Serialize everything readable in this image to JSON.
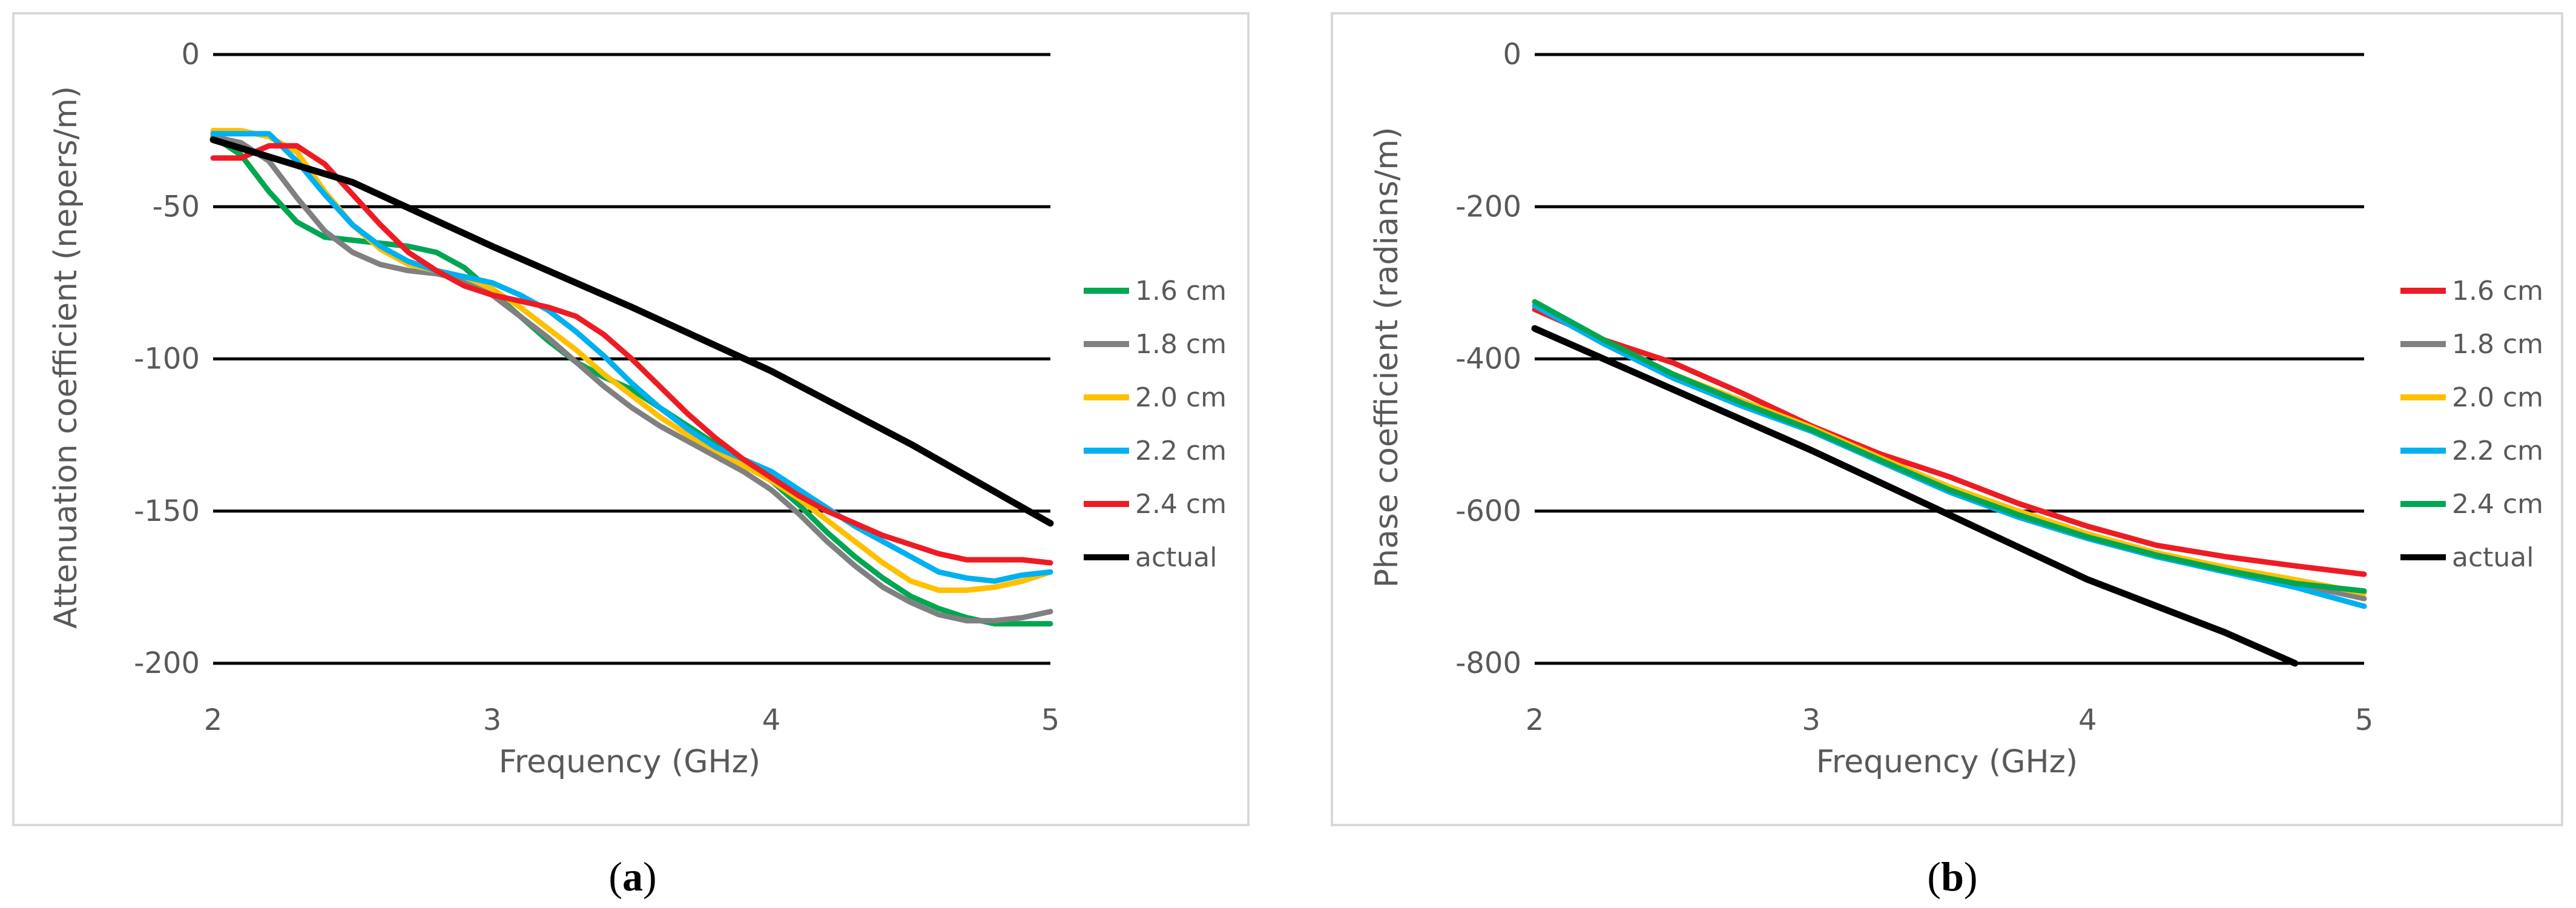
{
  "chart_data": [
    {
      "type": "line",
      "xlabel": "Frequency (GHz)",
      "ylabel": "Attenuation coefficient (nepers/m)",
      "xlim": [
        2,
        5
      ],
      "ylim": [
        -200,
        0
      ],
      "xticks": [
        "2",
        "3",
        "4",
        "5"
      ],
      "yticks": [
        "0",
        "-50",
        "-100",
        "-150",
        "-200"
      ],
      "grid": "horizontal",
      "legend": "right",
      "caption": {
        "label": "a",
        "open": "(",
        "close": ")"
      },
      "series": [
        {
          "name": "1.6 cm",
          "color": "#00a651",
          "x": [
            2.0,
            2.1,
            2.2,
            2.3,
            2.4,
            2.5,
            2.6,
            2.7,
            2.8,
            2.9,
            3.0,
            3.1,
            3.2,
            3.3,
            3.4,
            3.5,
            3.6,
            3.7,
            3.8,
            3.9,
            4.0,
            4.1,
            4.2,
            4.3,
            4.4,
            4.5,
            4.6,
            4.7,
            4.8,
            4.9,
            5.0
          ],
          "y": [
            -27,
            -33,
            -45,
            -55,
            -60,
            -61,
            -62,
            -63,
            -65,
            -70,
            -78,
            -86,
            -94,
            -101,
            -106,
            -110,
            -116,
            -122,
            -128,
            -134,
            -140,
            -148,
            -157,
            -165,
            -172,
            -178,
            -182,
            -185,
            -187,
            -187,
            -187
          ]
        },
        {
          "name": "1.8 cm",
          "color": "#808080",
          "x": [
            2.0,
            2.1,
            2.2,
            2.3,
            2.4,
            2.5,
            2.6,
            2.7,
            2.8,
            2.9,
            3.0,
            3.1,
            3.2,
            3.3,
            3.4,
            3.5,
            3.6,
            3.7,
            3.8,
            3.9,
            4.0,
            4.1,
            4.2,
            4.3,
            4.4,
            4.5,
            4.6,
            4.7,
            4.8,
            4.9,
            5.0
          ],
          "y": [
            -27,
            -29,
            -35,
            -47,
            -58,
            -65,
            -69,
            -71,
            -72,
            -74,
            -79,
            -86,
            -93,
            -101,
            -109,
            -116,
            -122,
            -127,
            -132,
            -137,
            -143,
            -151,
            -160,
            -168,
            -175,
            -180,
            -184,
            -186,
            -186,
            -185,
            -183
          ]
        },
        {
          "name": "2.0 cm",
          "color": "#ffc000",
          "x": [
            2.0,
            2.1,
            2.2,
            2.3,
            2.4,
            2.5,
            2.6,
            2.7,
            2.8,
            2.9,
            3.0,
            3.1,
            3.2,
            3.3,
            3.4,
            3.5,
            3.6,
            3.7,
            3.8,
            3.9,
            4.0,
            4.1,
            4.2,
            4.3,
            4.4,
            4.5,
            4.6,
            4.7,
            4.8,
            4.9,
            5.0
          ],
          "y": [
            -25,
            -25,
            -27,
            -32,
            -45,
            -56,
            -64,
            -69,
            -71,
            -73,
            -77,
            -83,
            -90,
            -97,
            -105,
            -112,
            -119,
            -125,
            -130,
            -135,
            -140,
            -146,
            -153,
            -160,
            -167,
            -173,
            -176,
            -176,
            -175,
            -173,
            -170
          ]
        },
        {
          "name": "2.2 cm",
          "color": "#00b0f0",
          "x": [
            2.0,
            2.1,
            2.2,
            2.3,
            2.4,
            2.5,
            2.6,
            2.7,
            2.8,
            2.9,
            3.0,
            3.1,
            3.2,
            3.3,
            3.4,
            3.5,
            3.6,
            3.7,
            3.8,
            3.9,
            4.0,
            4.1,
            4.2,
            4.3,
            4.4,
            4.5,
            4.6,
            4.7,
            4.8,
            4.9,
            5.0
          ],
          "y": [
            -26,
            -26,
            -26,
            -35,
            -46,
            -56,
            -63,
            -68,
            -71,
            -73,
            -75,
            -79,
            -84,
            -91,
            -99,
            -108,
            -116,
            -123,
            -129,
            -133,
            -137,
            -143,
            -149,
            -155,
            -160,
            -165,
            -170,
            -172,
            -173,
            -171,
            -170
          ]
        },
        {
          "name": "2.4 cm",
          "color": "#ed1c24",
          "x": [
            2.0,
            2.1,
            2.2,
            2.3,
            2.4,
            2.5,
            2.6,
            2.7,
            2.8,
            2.9,
            3.0,
            3.1,
            3.2,
            3.3,
            3.4,
            3.5,
            3.6,
            3.7,
            3.8,
            3.9,
            4.0,
            4.1,
            4.2,
            4.3,
            4.4,
            4.5,
            4.6,
            4.7,
            4.8,
            4.9,
            5.0
          ],
          "y": [
            -34,
            -34,
            -30,
            -30,
            -36,
            -46,
            -56,
            -65,
            -71,
            -76,
            -79,
            -81,
            -83,
            -86,
            -92,
            -100,
            -109,
            -118,
            -126,
            -133,
            -139,
            -145,
            -150,
            -154,
            -158,
            -161,
            -164,
            -166,
            -166,
            -166,
            -167
          ]
        },
        {
          "name": "actual",
          "color": "#000000",
          "x": [
            2.0,
            2.5,
            3.0,
            3.5,
            4.0,
            4.5,
            5.0
          ],
          "y": [
            -28,
            -42,
            -63,
            -83,
            -104,
            -128,
            -154
          ]
        }
      ]
    },
    {
      "type": "line",
      "xlabel": "Frequency (GHz)",
      "ylabel": "Phase coefficient (radians/m)",
      "xlim": [
        2,
        5
      ],
      "ylim": [
        -800,
        0
      ],
      "xticks": [
        "2",
        "3",
        "4",
        "5"
      ],
      "yticks": [
        "0",
        "-200",
        "-400",
        "-600",
        "-800"
      ],
      "grid": "horizontal",
      "legend": "right",
      "caption": {
        "label": "b",
        "open": "(",
        "close": ")"
      },
      "series": [
        {
          "name": "1.6 cm",
          "color": "#ed1c24",
          "x": [
            2.0,
            2.25,
            2.5,
            2.75,
            3.0,
            3.25,
            3.5,
            3.75,
            4.0,
            4.25,
            4.5,
            4.75,
            5.0
          ],
          "y": [
            -335,
            -375,
            -405,
            -445,
            -488,
            -525,
            -555,
            -590,
            -620,
            -645,
            -660,
            -672,
            -683
          ]
        },
        {
          "name": "1.8 cm",
          "color": "#808080",
          "x": [
            2.0,
            2.25,
            2.5,
            2.75,
            3.0,
            3.25,
            3.5,
            3.75,
            4.0,
            4.25,
            4.5,
            4.75,
            5.0
          ],
          "y": [
            -330,
            -380,
            -425,
            -460,
            -493,
            -535,
            -575,
            -608,
            -635,
            -660,
            -678,
            -695,
            -715
          ]
        },
        {
          "name": "2.0 cm",
          "color": "#ffc000",
          "x": [
            2.0,
            2.25,
            2.5,
            2.75,
            3.0,
            3.25,
            3.5,
            3.75,
            4.0,
            4.25,
            4.5,
            4.75,
            5.0
          ],
          "y": [
            -330,
            -378,
            -420,
            -455,
            -490,
            -530,
            -568,
            -600,
            -630,
            -655,
            -674,
            -690,
            -708
          ]
        },
        {
          "name": "2.2 cm",
          "color": "#00b0f0",
          "x": [
            2.0,
            2.25,
            2.5,
            2.75,
            3.0,
            3.25,
            3.5,
            3.75,
            4.0,
            4.25,
            4.5,
            4.75,
            5.0
          ],
          "y": [
            -330,
            -380,
            -425,
            -462,
            -495,
            -535,
            -575,
            -608,
            -636,
            -660,
            -680,
            -700,
            -725
          ]
        },
        {
          "name": "2.4 cm",
          "color": "#00a651",
          "x": [
            2.0,
            2.25,
            2.5,
            2.75,
            3.0,
            3.25,
            3.5,
            3.75,
            4.0,
            4.25,
            4.5,
            4.75,
            5.0
          ],
          "y": [
            -325,
            -375,
            -420,
            -458,
            -493,
            -533,
            -572,
            -605,
            -634,
            -658,
            -678,
            -695,
            -705
          ]
        },
        {
          "name": "actual",
          "color": "#000000",
          "x": [
            2.0,
            2.5,
            3.0,
            3.5,
            4.0,
            4.5,
            4.75
          ],
          "y": [
            -360,
            -440,
            -520,
            -605,
            -690,
            -760,
            -800
          ]
        }
      ]
    }
  ]
}
